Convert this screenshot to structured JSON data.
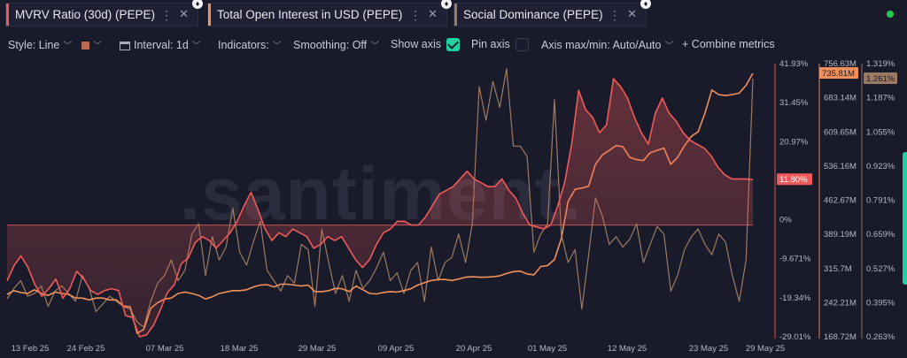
{
  "tabs": [
    {
      "label": "MVRV Ratio (30d) (PEPE)",
      "color": "#f05a5a"
    },
    {
      "label": "Total Open Interest in USD (PEPE)",
      "color": "#f0905a"
    },
    {
      "label": "Social Dominance (PEPE)",
      "color": "#9c7a62"
    }
  ],
  "toolbar": {
    "style": "Style: Line",
    "interval": "Interval: 1d",
    "indicators": "Indicators:",
    "smoothing": "Smoothing: Off",
    "show_axis": "Show axis",
    "pin_axis": "Pin axis",
    "axis_maxmin": "Axis max/min: Auto/Auto",
    "combine": "Combine metrics"
  },
  "watermark": ".santiment.",
  "chart_data": {
    "type": "line",
    "x_ticks": [
      "13 Feb 25",
      "24 Feb 25",
      "07 Mar 25",
      "18 Mar 25",
      "29 Mar 25",
      "09 Apr 25",
      "20 Apr 25",
      "01 May 25",
      "12 May 25",
      "23 May 25",
      "29 May 25"
    ],
    "axes": {
      "mvrv": {
        "ticks": [
          "41.93%",
          "31.45%",
          "20.97%",
          "10.49%",
          "0%",
          "-9.671%",
          "-19.34%",
          "-29.01%"
        ],
        "min": -29.01,
        "max": 41.93,
        "current": "11.80%",
        "color": "#f05a5a"
      },
      "open_interest": {
        "ticks": [
          "756.63M",
          "683.14M",
          "609.65M",
          "536.16M",
          "462.67M",
          "389.19M",
          "315.7M",
          "242.21M",
          "168.72M"
        ],
        "min": 168.72,
        "max": 756.63,
        "current": "735.81M",
        "color": "#f0905a"
      },
      "social_dominance": {
        "ticks": [
          "1.319%",
          "1.187%",
          "1.055%",
          "0.923%",
          "0.791%",
          "0.659%",
          "0.527%",
          "0.395%",
          "0.263%"
        ],
        "min": 0.263,
        "max": 1.319,
        "current": "1.261%",
        "color": "#9c7a62"
      }
    },
    "series": [
      {
        "name": "MVRV Ratio (30d) (PEPE)",
        "axis": "mvrv",
        "values": [
          -14.5,
          -10.5,
          -8,
          -11,
          -15.5,
          -18.5,
          -16.5,
          -14,
          -19,
          -16.5,
          -12,
          -14,
          -17,
          -18,
          -17,
          -16.5,
          -17,
          -23.5,
          -24,
          -29,
          -28.5,
          -26,
          -22,
          -17.5,
          -15.5,
          -10,
          -8.5,
          -4.5,
          -3,
          -4,
          -6,
          -4,
          -2,
          1,
          5,
          8.5,
          4,
          -1,
          -4,
          -2,
          -3,
          -1,
          -2,
          -3,
          -6,
          -5,
          -3,
          -4,
          -3,
          -6,
          -9,
          -11,
          -9,
          -5,
          -2,
          -1,
          1,
          1,
          0,
          0,
          2,
          5,
          8,
          9,
          10,
          12,
          14,
          12,
          11,
          10,
          10,
          12,
          9,
          7,
          3,
          0,
          -0.5,
          -1,
          0,
          5,
          11,
          21,
          35,
          30,
          28,
          24,
          26,
          38,
          36,
          33,
          28,
          24,
          21,
          29,
          33,
          29,
          27,
          24,
          22,
          21,
          20,
          18,
          15,
          13,
          12,
          12,
          12,
          11.8
        ]
      },
      {
        "name": "Total Open Interest in USD (PEPE)",
        "axis": "open_interest",
        "values": [
          260,
          268,
          264,
          262,
          270,
          262,
          258,
          265,
          262,
          260,
          252,
          252,
          248,
          252,
          252,
          248,
          248,
          235,
          233,
          176,
          185,
          230,
          242,
          250,
          252,
          262,
          265,
          262,
          258,
          250,
          255,
          262,
          265,
          268,
          268,
          270,
          276,
          280,
          281,
          276,
          282,
          282,
          280,
          278,
          280,
          266,
          266,
          268,
          273,
          272,
          266,
          278,
          270,
          262,
          261,
          264,
          266,
          265,
          268,
          272,
          280,
          285,
          290,
          292,
          292,
          290,
          293,
          297,
          298,
          297,
          297,
          298,
          300,
          305,
          309,
          310,
          304,
          302,
          320,
          322,
          335,
          380,
          460,
          486,
          489,
          493,
          540,
          560,
          570,
          580,
          578,
          555,
          550,
          548,
          565,
          570,
          575,
          540,
          555,
          580,
          600,
          610,
          650,
          700,
          690,
          688,
          690,
          693,
          710,
          735.81
        ]
      },
      {
        "name": "Social Dominance (PEPE)",
        "axis": "social_dominance",
        "values": [
          0.41,
          0.45,
          0.48,
          0.42,
          0.43,
          0.46,
          0.38,
          0.44,
          0.46,
          0.43,
          0.4,
          0.5,
          0.45,
          0.36,
          0.39,
          0.42,
          0.4,
          0.38,
          0.37,
          0.32,
          0.3,
          0.4,
          0.47,
          0.5,
          0.56,
          0.48,
          0.52,
          0.66,
          0.7,
          0.5,
          0.65,
          0.56,
          0.61,
          0.76,
          0.59,
          0.54,
          0.63,
          0.71,
          0.52,
          0.48,
          0.44,
          0.5,
          0.47,
          0.62,
          0.6,
          0.38,
          0.68,
          0.55,
          0.43,
          0.5,
          0.4,
          0.52,
          0.45,
          0.48,
          0.53,
          0.59,
          0.48,
          0.51,
          0.43,
          0.52,
          0.55,
          0.4,
          0.61,
          0.48,
          0.55,
          0.57,
          0.66,
          0.55,
          0.7,
          1.23,
          1.1,
          1.25,
          1.15,
          1.3,
          1.0,
          1.0,
          0.96,
          0.59,
          0.66,
          0.7,
          1.18,
          0.66,
          0.55,
          0.6,
          0.37,
          0.58,
          0.8,
          0.73,
          0.62,
          0.65,
          0.61,
          0.64,
          0.7,
          0.55,
          0.62,
          0.69,
          0.66,
          0.44,
          0.5,
          0.6,
          0.65,
          0.68,
          0.62,
          0.58,
          0.66,
          0.63,
          0.5,
          0.4,
          0.56,
          1.261
        ]
      }
    ]
  }
}
